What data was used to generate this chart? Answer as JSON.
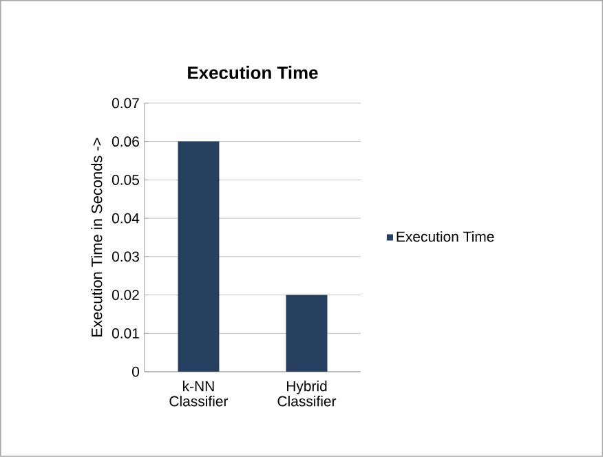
{
  "chart_data": {
    "type": "bar",
    "title": "Execution Time",
    "ylabel": "Execution Time in Seconds ->",
    "categories": [
      "k-NN Classifier",
      "Hybrid Classifier"
    ],
    "series": [
      {
        "name": "Execution Time",
        "color": "#243f60",
        "values": [
          0.06,
          0.02
        ]
      }
    ],
    "ylim": [
      0,
      0.07
    ],
    "yticks": [
      0,
      0.01,
      0.02,
      0.03,
      0.04,
      0.05,
      0.06,
      0.07
    ],
    "grid": "y",
    "legend": "right"
  }
}
